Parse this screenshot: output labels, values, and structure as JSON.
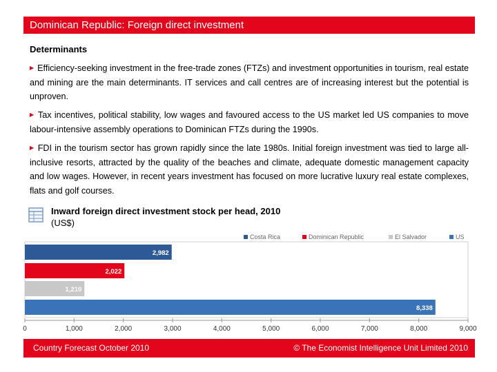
{
  "header": {
    "title": "Dominican Republic: Foreign direct investment"
  },
  "section": {
    "heading": "Determinants"
  },
  "paragraphs": [
    "Efficiency-seeking investment in the free-trade zones (FTZs) and investment opportunities in tourism, real estate and mining are the main determinants. IT services and call centres are of increasing interest but the potential is unproven.",
    "Tax incentives, political stability, low wages and favoured access to the US market led US companies to move labour-intensive assembly operations to Dominican FTZs during the 1990s.",
    "FDI in the tourism sector has grown rapidly since the late 1980s. Initial foreign investment was tied to large all-inclusive resorts, attracted by the quality of the beaches and climate, adequate domestic management capacity and low wages. However, in recent years investment has focused on more lucrative luxury real estate complexes, flats and golf courses."
  ],
  "chart_data": {
    "type": "bar",
    "orientation": "horizontal",
    "title": "Inward foreign direct investment stock per head, 2010",
    "subtitle": "(US$)",
    "categories": [
      "Costa Rica",
      "Dominican Republic",
      "El Salvador",
      "US"
    ],
    "values": [
      2982,
      2022,
      1210,
      8338
    ],
    "value_labels": [
      "2,982",
      "2,022",
      "1,210",
      "8,338"
    ],
    "colors": [
      "#2d5a96",
      "#e3051b",
      "#c8c8c8",
      "#3a73b8"
    ],
    "legend": [
      "Costa Rica",
      "Dominican Republic",
      "El Salvador",
      "US"
    ],
    "legend_position": "top-right",
    "xlim": [
      0,
      9000
    ],
    "xticks": [
      "0",
      "1,000",
      "2,000",
      "3,000",
      "4,000",
      "5,000",
      "6,000",
      "7,000",
      "8,000",
      "9,000"
    ],
    "grid": false
  },
  "footer": {
    "left": "Country Forecast October 2010",
    "right": "© The Economist Intelligence Unit Limited 2010"
  }
}
